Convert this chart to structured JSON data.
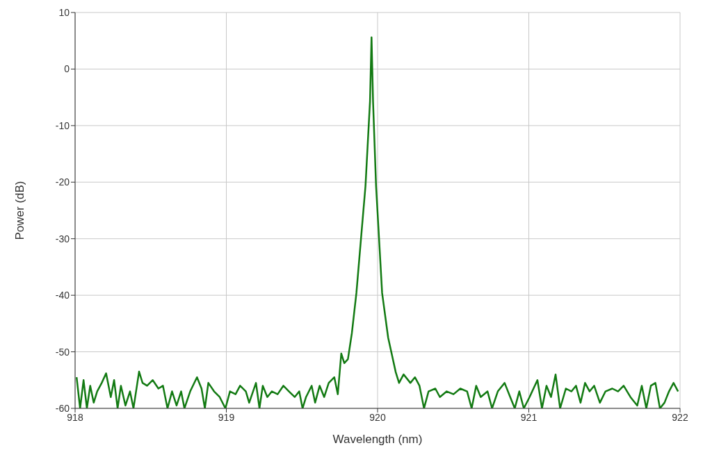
{
  "chart_data": {
    "type": "line",
    "xlabel": "Wavelength (nm)",
    "ylabel": "Power (dB)",
    "xlim": [
      918,
      922
    ],
    "xticks": [
      918,
      919,
      920,
      921,
      922
    ],
    "ylim": [
      -60,
      10
    ],
    "yticks": [
      -60,
      -50,
      -40,
      -30,
      -20,
      -10,
      0,
      10
    ],
    "grid": true,
    "legend": false,
    "marker": "none",
    "line_style": "solid",
    "series": [
      {
        "color": "#127a12",
        "x": [
          918.01,
          918.033,
          918.056,
          918.078,
          918.1,
          918.123,
          918.146,
          918.176,
          918.205,
          918.236,
          918.258,
          918.281,
          918.303,
          918.333,
          918.363,
          918.386,
          918.423,
          918.446,
          918.476,
          918.513,
          918.551,
          918.581,
          918.611,
          918.641,
          918.671,
          918.701,
          918.723,
          918.761,
          918.806,
          918.836,
          918.858,
          918.881,
          918.919,
          918.956,
          918.994,
          919.024,
          919.061,
          919.091,
          919.129,
          919.151,
          919.196,
          919.219,
          919.241,
          919.271,
          919.301,
          919.339,
          919.377,
          919.414,
          919.452,
          919.482,
          919.504,
          919.527,
          919.564,
          919.587,
          919.617,
          919.647,
          919.677,
          919.714,
          919.737,
          919.76,
          919.78,
          919.804,
          919.83,
          919.86,
          919.89,
          919.92,
          919.95,
          919.96,
          919.97,
          919.99,
          920.01,
          920.03,
          920.07,
          920.12,
          920.142,
          920.172,
          920.217,
          920.247,
          920.277,
          920.307,
          920.337,
          920.382,
          920.412,
          920.457,
          920.502,
          920.547,
          920.592,
          920.622,
          920.652,
          920.682,
          920.727,
          920.757,
          920.795,
          920.84,
          920.877,
          920.907,
          920.937,
          920.967,
          921.005,
          921.057,
          921.087,
          921.117,
          921.147,
          921.177,
          921.207,
          921.245,
          921.282,
          921.312,
          921.342,
          921.372,
          921.402,
          921.432,
          921.47,
          921.507,
          921.552,
          921.59,
          921.627,
          921.672,
          921.717,
          921.747,
          921.777,
          921.807,
          921.837,
          921.867,
          921.897,
          921.927,
          921.957,
          921.987
        ],
        "values": [
          -54.5,
          -60,
          -55,
          -60,
          -56,
          -59,
          -57,
          -55.5,
          -53.8,
          -58,
          -55,
          -60,
          -56,
          -59.5,
          -57,
          -60,
          -53.5,
          -55.5,
          -56,
          -55,
          -56.5,
          -56,
          -60,
          -57,
          -59.5,
          -57,
          -60,
          -57,
          -54.5,
          -56.5,
          -60,
          -55.5,
          -57,
          -58,
          -60,
          -57,
          -57.5,
          -56,
          -57,
          -59,
          -55.5,
          -60,
          -56,
          -58,
          -57,
          -57.5,
          -56,
          -57,
          -58,
          -57,
          -60,
          -58,
          -56,
          -59,
          -56,
          -58,
          -55.5,
          -54.5,
          -57.5,
          -50.3,
          -52,
          -51.3,
          -46.7,
          -39.6,
          -30.1,
          -20.7,
          -5.7,
          5.6,
          -5.7,
          -20.7,
          -30.1,
          -39.6,
          -47.5,
          -53.6,
          -55.5,
          -54,
          -55.5,
          -54.5,
          -56,
          -60,
          -57,
          -56.5,
          -58,
          -57,
          -57.5,
          -56.5,
          -57,
          -60,
          -56,
          -58,
          -57,
          -60,
          -57,
          -55.5,
          -58,
          -60,
          -57,
          -60,
          -58,
          -55,
          -60,
          -56,
          -58,
          -54,
          -60,
          -56.5,
          -57,
          -56,
          -59,
          -55.5,
          -57,
          -56,
          -59,
          -57,
          -56.5,
          -57,
          -56,
          -58,
          -59.5,
          -56,
          -60,
          -56,
          -55.5,
          -60,
          -59,
          -57,
          -55.5,
          -57
        ]
      }
    ]
  }
}
